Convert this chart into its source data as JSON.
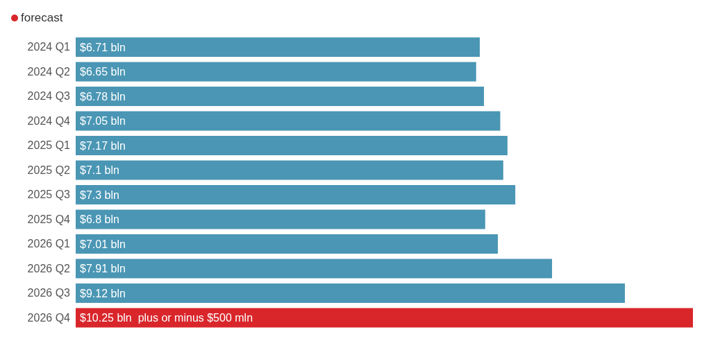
{
  "chart_data": {
    "type": "bar",
    "orientation": "horizontal",
    "stacked": true,
    "legend": "top left",
    "tick_labels": "y",
    "xlim": [
      0,
      10.25
    ],
    "categories": [
      "2024 Q1",
      "2024 Q2",
      "2024 Q3",
      "2024 Q4",
      "2025 Q1",
      "2025 Q2",
      "2025 Q3",
      "2025 Q4",
      "2026 Q1",
      "2026 Q2",
      "2026 Q3",
      "2026 Q4"
    ],
    "series": [
      {
        "color": "#4a96b4",
        "values": [
          6.71,
          6.65,
          6.78,
          7.05,
          7.17,
          7.1,
          7.3,
          6.8,
          7.01,
          7.91,
          9.12,
          null
        ],
        "value_labels": [
          "$6.71 bln",
          "$6.65 bln",
          "$6.78 bln",
          "$7.05 bln",
          "$7.17 bln",
          "$7.1 bln",
          "$7.3 bln",
          "$6.8 bln",
          "$7.01 bln",
          "$7.91 bln",
          "$9.12 bln",
          null
        ]
      },
      {
        "name": "forecast",
        "color": "#d9262b",
        "values": [
          null,
          null,
          null,
          null,
          null,
          null,
          null,
          null,
          null,
          null,
          null,
          10.25
        ],
        "value_labels": [
          null,
          null,
          null,
          null,
          null,
          null,
          null,
          null,
          null,
          null,
          null,
          "$10.25 bln  plus or minus $500 mln"
        ]
      }
    ]
  }
}
